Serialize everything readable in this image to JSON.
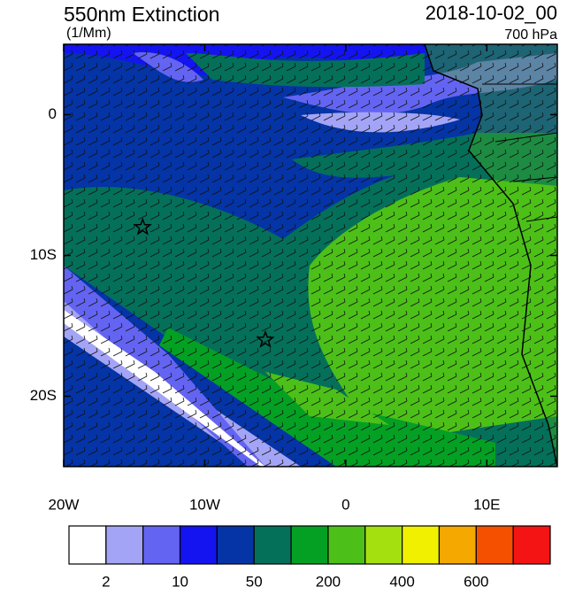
{
  "header": {
    "title": "550nm Extinction",
    "units": "(1/Mm)",
    "date": "2018-10-02_00",
    "level": "700 hPa"
  },
  "map": {
    "lonlim": [
      -20,
      15
    ],
    "latlim": [
      -25,
      5
    ],
    "lon_ticks": [
      {
        "value": -20,
        "label": "20W"
      },
      {
        "value": -10,
        "label": "10W"
      },
      0,
      {
        "value": 10,
        "label": "10E"
      }
    ],
    "lat_ticks": [
      0,
      {
        "value": -10,
        "label": "10S"
      },
      {
        "value": -20,
        "label": "20S"
      }
    ],
    "markers": [
      {
        "lon": -14.4,
        "lat": -8
      },
      {
        "lon": -5.7,
        "lat": -16
      }
    ]
  },
  "colorbar": {
    "colors": [
      "#ffffff",
      "#a4a4f6",
      "#6464f2",
      "#1414f0",
      "#0434a6",
      "#04705a",
      "#04a024",
      "#4cc018",
      "#a4e010",
      "#f0f000",
      "#f4a800",
      "#f45000",
      "#f41414"
    ],
    "labels": [
      "2",
      "10",
      "50",
      "200",
      "400",
      "600"
    ]
  }
}
